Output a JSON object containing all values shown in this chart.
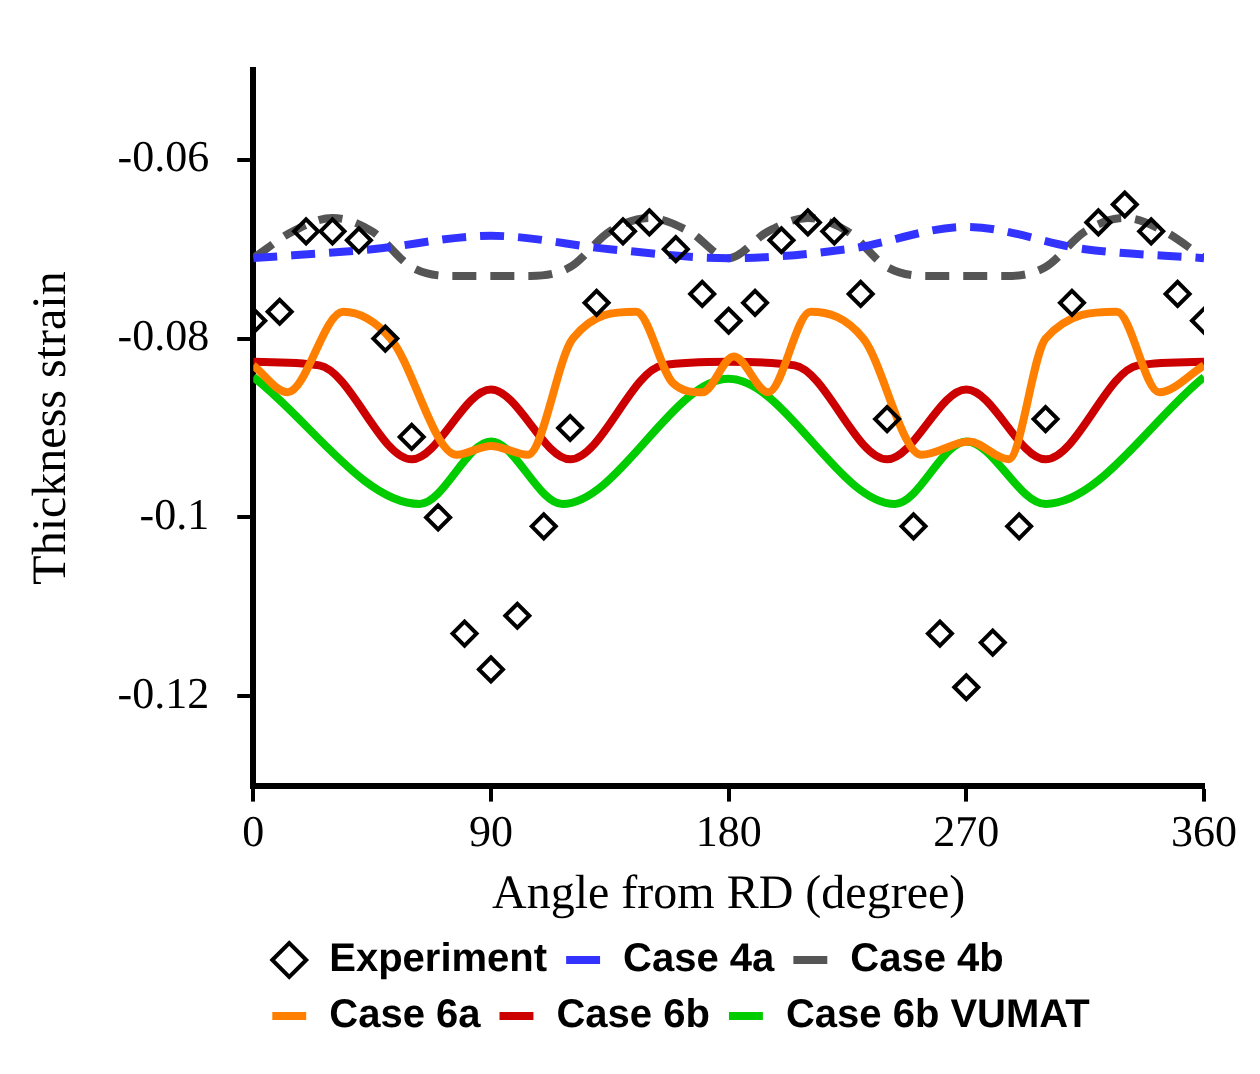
{
  "chart_data": {
    "type": "line",
    "xlabel": "Angle from RD (degree)",
    "ylabel": "Thickness strain",
    "xlim": [
      0,
      360
    ],
    "xticks": [
      0,
      90,
      180,
      270,
      360
    ],
    "ylim": [
      -0.13,
      -0.05
    ],
    "yticks": [
      -0.06,
      -0.08,
      -0.1,
      -0.12
    ],
    "grid": false,
    "legend": "bottom",
    "series": [
      {
        "name": "Experiment",
        "type": "scatter",
        "marker": "diamond",
        "color": "#000000",
        "x": [
          0,
          10,
          20,
          30,
          40,
          50,
          60,
          70,
          80,
          90,
          100,
          110,
          120,
          130,
          140,
          150,
          160,
          170,
          180,
          190,
          200,
          210,
          220,
          230,
          240,
          250,
          260,
          270,
          280,
          290,
          300,
          310,
          320,
          330,
          340,
          350,
          360
        ],
        "values": [
          -0.078,
          -0.077,
          -0.068,
          -0.068,
          -0.069,
          -0.08,
          -0.091,
          -0.1,
          -0.113,
          -0.117,
          -0.111,
          -0.101,
          -0.09,
          -0.076,
          -0.068,
          -0.067,
          -0.07,
          -0.075,
          -0.078,
          -0.076,
          -0.069,
          -0.067,
          -0.068,
          -0.075,
          -0.089,
          -0.101,
          -0.113,
          -0.119,
          -0.114,
          -0.101,
          -0.089,
          -0.076,
          -0.067,
          -0.065,
          -0.068,
          -0.075,
          -0.078
        ]
      },
      {
        "name": "Case 4a",
        "type": "line",
        "line_style": "dashed",
        "color": "#3333ff",
        "x": [
          0,
          45,
          90,
          135,
          180,
          225,
          270,
          315,
          360
        ],
        "values": [
          -0.071,
          -0.07,
          -0.0685,
          -0.07,
          -0.071,
          -0.07,
          -0.0675,
          -0.07,
          -0.071
        ]
      },
      {
        "name": "Case 4b",
        "type": "line",
        "line_style": "dashed",
        "color": "#555555",
        "x": [
          0,
          15,
          30,
          45,
          60,
          75,
          90,
          105,
          120,
          135,
          150,
          165,
          180,
          195,
          210,
          225,
          240,
          255,
          270,
          285,
          300,
          315,
          330,
          345,
          360
        ],
        "values": [
          -0.071,
          -0.068,
          -0.0665,
          -0.068,
          -0.072,
          -0.073,
          -0.073,
          -0.073,
          -0.072,
          -0.068,
          -0.0665,
          -0.068,
          -0.071,
          -0.068,
          -0.0665,
          -0.068,
          -0.072,
          -0.073,
          -0.073,
          -0.073,
          -0.072,
          -0.068,
          -0.0665,
          -0.068,
          -0.071
        ]
      },
      {
        "name": "Case 6a",
        "type": "line",
        "line_style": "solid",
        "color": "#ff8000",
        "x": [
          0,
          13,
          34,
          52,
          77,
          90,
          104,
          121,
          145,
          159,
          170,
          182,
          195,
          211,
          231,
          253,
          271,
          286,
          300,
          327,
          343,
          360
        ],
        "values": [
          -0.083,
          -0.086,
          -0.077,
          -0.08,
          -0.093,
          -0.092,
          -0.093,
          -0.08,
          -0.077,
          -0.085,
          -0.086,
          -0.082,
          -0.086,
          -0.077,
          -0.08,
          -0.093,
          -0.0915,
          -0.0935,
          -0.08,
          -0.077,
          -0.086,
          -0.083
        ]
      },
      {
        "name": "Case 6b",
        "type": "line",
        "line_style": "solid",
        "color": "#cc0000",
        "x": [
          0,
          25,
          60,
          90,
          120,
          155,
          180,
          205,
          240,
          270,
          300,
          335,
          360
        ],
        "values": [
          -0.0826,
          -0.083,
          -0.0935,
          -0.0857,
          -0.0935,
          -0.083,
          -0.0826,
          -0.083,
          -0.0935,
          -0.0857,
          -0.0935,
          -0.083,
          -0.0826
        ]
      },
      {
        "name": "Case 6b VUMAT",
        "type": "line",
        "line_style": "solid",
        "color": "#00cc00",
        "x": [
          0,
          63,
          90,
          117,
          180,
          243,
          270,
          300,
          360
        ],
        "values": [
          -0.0843,
          -0.0985,
          -0.0915,
          -0.0985,
          -0.0845,
          -0.0985,
          -0.0915,
          -0.0985,
          -0.0843
        ]
      }
    ]
  }
}
